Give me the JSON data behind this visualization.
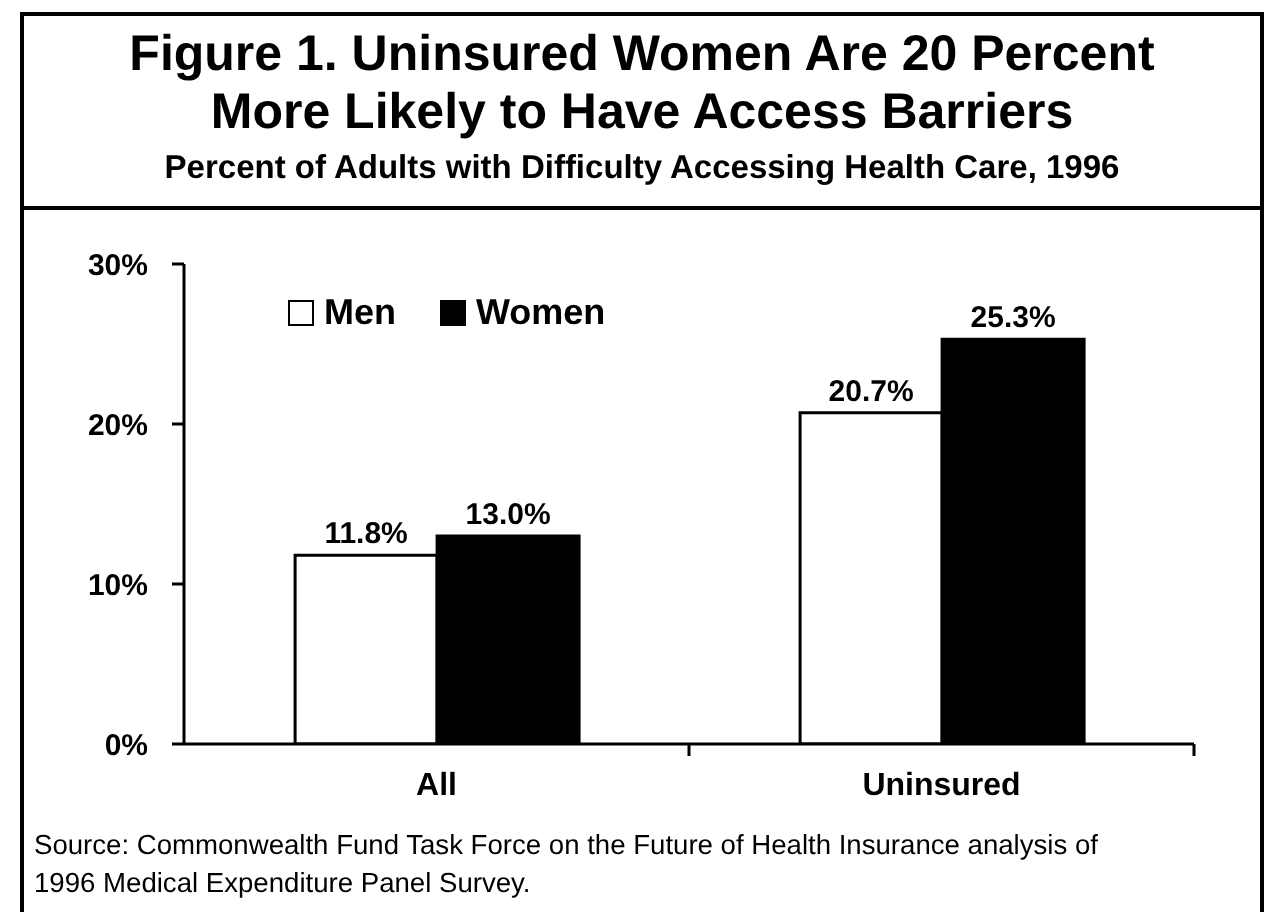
{
  "chart_data": {
    "type": "bar",
    "title": "Figure 1. Uninsured Women Are 20 Percent More Likely to Have Access Barriers",
    "subtitle": "Percent of Adults with Difficulty Accessing Health Care, 1996",
    "categories": [
      "All",
      "Uninsured"
    ],
    "series": [
      {
        "name": "Men",
        "color": "#ffffff",
        "values": [
          11.8,
          20.7
        ],
        "value_labels": [
          "11.8%",
          "20.7%"
        ]
      },
      {
        "name": "Women",
        "color": "#000000",
        "values": [
          13.0,
          25.3
        ],
        "value_labels": [
          "13.0%",
          "25.3%"
        ]
      }
    ],
    "ylim": [
      0,
      30
    ],
    "yticks": [
      {
        "value": 0,
        "label": "0%"
      },
      {
        "value": 10,
        "label": "10%"
      },
      {
        "value": 20,
        "label": "20%"
      },
      {
        "value": 30,
        "label": "30%"
      }
    ],
    "legend": "top left",
    "annotations": [
      "Source: Commonwealth Fund Task Force on the Future of Health Insurance analysis of 1996 Medical Expenditure Panel Survey."
    ]
  }
}
